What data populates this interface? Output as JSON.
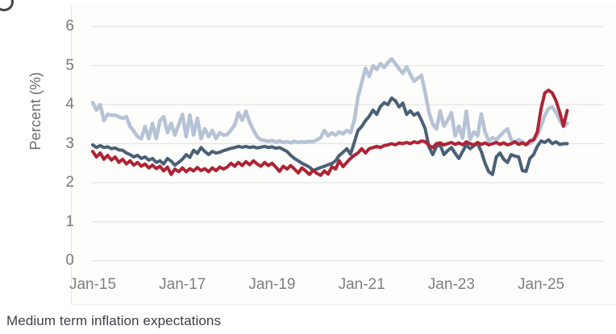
{
  "page": {
    "caption": "Medium term inflation expectations",
    "background": "#ffffff"
  },
  "chart_data": {
    "type": "line",
    "title": "",
    "xlabel": "",
    "ylabel": "Percent (%)",
    "ylim": [
      0,
      6
    ],
    "yticks": [
      0,
      1,
      2,
      3,
      4,
      5,
      6
    ],
    "grid": "horizontal",
    "gridline_color": "#e4e4e2",
    "legend": "none",
    "x_start": "Jan-15",
    "x_step_months": 1,
    "xticks": [
      {
        "month_index": 0,
        "label": "Jan-15"
      },
      {
        "month_index": 24,
        "label": "Jan-17"
      },
      {
        "month_index": 48,
        "label": "Jan-19"
      },
      {
        "month_index": 72,
        "label": "Jan-21"
      },
      {
        "month_index": 96,
        "label": "Jan-23"
      },
      {
        "month_index": 120,
        "label": "Jan-25"
      }
    ],
    "series": [
      {
        "name": "light_blue",
        "color": "#b6c2d5",
        "stroke_width": 4.5,
        "values": [
          4.05,
          3.86,
          4.0,
          3.59,
          3.75,
          3.73,
          3.73,
          3.69,
          3.65,
          3.69,
          3.44,
          3.32,
          3.18,
          3.13,
          3.44,
          3.13,
          3.52,
          3.13,
          3.59,
          3.69,
          3.28,
          3.52,
          3.22,
          3.48,
          3.75,
          3.18,
          3.73,
          3.22,
          3.65,
          3.13,
          3.38,
          3.18,
          3.34,
          3.13,
          3.28,
          3.22,
          3.23,
          3.35,
          3.48,
          3.79,
          3.6,
          3.83,
          3.55,
          3.35,
          3.18,
          3.1,
          3.08,
          3.06,
          3.08,
          3.04,
          3.07,
          3.03,
          3.05,
          3.02,
          3.06,
          3.03,
          3.05,
          3.04,
          3.06,
          3.05,
          3.1,
          3.15,
          3.34,
          3.2,
          3.28,
          3.22,
          3.3,
          3.25,
          3.34,
          3.28,
          3.59,
          4.2,
          4.56,
          4.93,
          4.72,
          5.0,
          4.9,
          5.05,
          4.95,
          5.08,
          5.17,
          5.05,
          4.92,
          4.8,
          4.97,
          4.78,
          4.6,
          4.68,
          4.75,
          4.3,
          3.8,
          3.5,
          3.38,
          3.84,
          3.45,
          3.6,
          3.79,
          3.2,
          3.45,
          3.14,
          3.83,
          3.11,
          3.3,
          3.2,
          3.76,
          3.3,
          3.07,
          3.15,
          3.1,
          3.2,
          3.3,
          3.38,
          3.1,
          3.03,
          3.1,
          3.05,
          3.0,
          3.0,
          3.08,
          3.2,
          3.45,
          3.73,
          3.9,
          3.94,
          3.8,
          3.6,
          3.44,
          3.52
        ]
      },
      {
        "name": "dark_blue",
        "color": "#4a6076",
        "stroke_width": 4,
        "values": [
          2.97,
          2.9,
          2.95,
          2.9,
          2.92,
          2.87,
          2.89,
          2.84,
          2.83,
          2.76,
          2.72,
          2.66,
          2.7,
          2.62,
          2.66,
          2.58,
          2.62,
          2.52,
          2.56,
          2.48,
          2.62,
          2.55,
          2.45,
          2.52,
          2.6,
          2.72,
          2.65,
          2.83,
          2.75,
          2.9,
          2.8,
          2.72,
          2.8,
          2.76,
          2.78,
          2.82,
          2.85,
          2.88,
          2.9,
          2.93,
          2.91,
          2.93,
          2.9,
          2.92,
          2.89,
          2.91,
          2.93,
          2.9,
          2.92,
          2.88,
          2.9,
          2.85,
          2.8,
          2.7,
          2.62,
          2.56,
          2.5,
          2.45,
          2.4,
          2.31,
          2.35,
          2.39,
          2.42,
          2.46,
          2.49,
          2.56,
          2.7,
          2.78,
          2.87,
          2.73,
          3.03,
          3.34,
          3.44,
          3.59,
          3.7,
          3.86,
          3.75,
          3.95,
          4.05,
          4.0,
          4.17,
          4.1,
          3.94,
          4.04,
          3.75,
          3.84,
          3.73,
          3.79,
          3.6,
          3.38,
          2.91,
          2.72,
          2.93,
          2.97,
          2.72,
          2.82,
          2.9,
          2.75,
          2.62,
          2.8,
          2.97,
          2.87,
          2.95,
          3.0,
          2.8,
          2.5,
          2.28,
          2.21,
          2.66,
          2.76,
          2.6,
          2.52,
          2.72,
          2.68,
          2.66,
          2.31,
          2.29,
          2.62,
          2.72,
          2.93,
          3.07,
          3.03,
          3.1,
          3.0,
          3.05,
          2.98,
          3.0,
          3.0
        ]
      },
      {
        "name": "red",
        "color": "#ae2335",
        "stroke_width": 4,
        "values": [
          2.8,
          2.66,
          2.76,
          2.6,
          2.7,
          2.58,
          2.66,
          2.52,
          2.6,
          2.48,
          2.56,
          2.45,
          2.52,
          2.42,
          2.48,
          2.38,
          2.45,
          2.36,
          2.42,
          2.3,
          2.4,
          2.21,
          2.35,
          2.28,
          2.38,
          2.28,
          2.36,
          2.3,
          2.39,
          2.31,
          2.36,
          2.28,
          2.38,
          2.31,
          2.4,
          2.35,
          2.4,
          2.5,
          2.42,
          2.52,
          2.44,
          2.54,
          2.46,
          2.56,
          2.48,
          2.42,
          2.52,
          2.44,
          2.5,
          2.4,
          2.29,
          2.42,
          2.35,
          2.44,
          2.35,
          2.25,
          2.38,
          2.3,
          2.21,
          2.32,
          2.24,
          2.19,
          2.3,
          2.22,
          2.41,
          2.35,
          2.56,
          2.41,
          2.52,
          2.62,
          2.7,
          2.76,
          2.87,
          2.76,
          2.87,
          2.9,
          2.93,
          2.9,
          2.95,
          2.97,
          3.0,
          2.97,
          3.02,
          3.0,
          3.03,
          3.0,
          3.05,
          3.02,
          3.07,
          3.05,
          2.95,
          2.9,
          3.0,
          3.02,
          2.97,
          3.0,
          3.03,
          2.98,
          3.02,
          2.97,
          3.05,
          3.0,
          2.97,
          3.03,
          2.98,
          3.02,
          2.97,
          3.0,
          3.03,
          2.98,
          3.02,
          2.97,
          3.0,
          3.05,
          2.98,
          3.02,
          2.97,
          3.07,
          3.1,
          3.3,
          3.9,
          4.3,
          4.37,
          4.3,
          4.1,
          3.8,
          3.45,
          3.85
        ]
      }
    ],
    "axis_text_color": "#7b7b7b"
  }
}
